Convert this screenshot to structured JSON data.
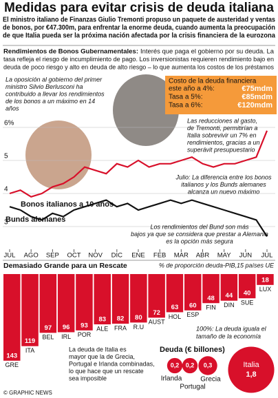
{
  "title": "Medidas para evitar crisis de deuda italiana",
  "intro": [
    "El ministro italiano de Finanzas Giulio Tremonti propuso un paquete de austeridad y ventas",
    "de bonos, por €47.300m, para enfrentar la enorme deuda, cuando aumenta la preocupación",
    "de que Italia pueda ser la próxima nación afectada por la crisis financiera de la eurozona"
  ],
  "section_label": "Rendimientos de Bonos Gubernamentales:",
  "section_text": [
    "Interés que paga el gobierno por su deuda. La",
    "tasa refleja el riesgo de incumplimiento de pago. Los inversionistas requieren rendimiento bajo en",
    "deuda de poco riesgo y alto en deuda de alto riesgo – lo que aumenta los costos de los préstamos"
  ],
  "cost_box": {
    "heading": [
      "Costo de la deuda financiera",
      "este año a 4%:"
    ],
    "rows": [
      {
        "label": "",
        "value": "€75mdm"
      },
      {
        "label": "Tasa a 5%:",
        "value": "€85mdm"
      },
      {
        "label": "Tasa a 6%:",
        "value": "€120mdm"
      }
    ]
  },
  "chart_data": [
    {
      "type": "line",
      "categories": [
        "JUL",
        null,
        "AGO",
        null,
        "SEP",
        null,
        "OCT",
        null,
        "NOV",
        null,
        "DIC",
        null,
        "ENE",
        null,
        "FEB",
        null,
        "MAR",
        null,
        "ABR",
        null,
        "MAY",
        null,
        "JUN",
        null,
        "JUL"
      ],
      "series": [
        {
          "name": "Bonos italianos a 10 años",
          "color": "#d8102a",
          "values": [
            4.0,
            4.1,
            3.9,
            4.0,
            4.2,
            4.3,
            4.5,
            4.8,
            4.7,
            4.6,
            4.9,
            4.8,
            5.0,
            4.8,
            4.9,
            4.9,
            5.0,
            5.1,
            4.9,
            4.8,
            4.9,
            4.9,
            5.0,
            5.1,
            5.9
          ]
        },
        {
          "name": "Bunds alemanes",
          "color": "#111111",
          "values": [
            3.6,
            3.5,
            3.3,
            3.2,
            3.4,
            3.3,
            3.5,
            3.6,
            3.7,
            3.8,
            3.6,
            3.7,
            3.5,
            3.6,
            3.7,
            3.8,
            3.7,
            3.8,
            3.7,
            3.6,
            3.5,
            3.4,
            3.3,
            3.2,
            2.7
          ]
        }
      ],
      "ylim": [
        2.5,
        6.5
      ],
      "yticks": [
        {
          "value": 6,
          "label": "6%"
        },
        5,
        4,
        3
      ],
      "grid": true,
      "annotations": [
        [
          "La oposición al gobierno del primer",
          "ministro Silvio Berlusconi ha",
          "contribuido a llevar los rendimientos",
          "de los bonos a un máximo en 14",
          "años"
        ],
        [
          "Las reducciones al gasto,",
          "de Tremonti, permitirían a",
          "Italia sobrevivir un 7% en",
          "rendimientos, gracias a un",
          "superávit presupuestario"
        ],
        [
          "Julio: La diferencia entre los bonos",
          "italianos y los Bunds alemanes",
          "alcanza un nuevo máximo"
        ],
        [
          "Los rendimientos del Bund son más",
          "bajos ya que se considera que prestar a Alemania",
          "es la opción más segura"
        ]
      ]
    },
    {
      "type": "bar",
      "title": "Demasiado Grande para un Rescate",
      "subtitle": "% de proporción deuda-PIB,15 países UE",
      "categories": [
        "GRE",
        "ITA",
        "BEL",
        "IRL",
        "POR",
        "ALE",
        "FRA",
        "R.U",
        "AUST",
        "HOL",
        "ESP",
        "FIN",
        "DIN",
        "SUE",
        "LUX"
      ],
      "values": [
        143,
        119,
        97,
        96,
        93,
        83,
        82,
        80,
        72,
        63,
        60,
        48,
        44,
        40,
        18
      ],
      "color": "#d8102a",
      "ylim": [
        0,
        150
      ],
      "annotations": [
        [
          "100%: La deuda iguala el",
          "tamaño de la economía"
        ],
        [
          "La deuda de Italia es",
          "mayor que la de Grecia,",
          "Portugal e Irlanda combinadas,",
          "lo que hace que un rescate",
          "sea imposible"
        ]
      ]
    },
    {
      "type": "bubble",
      "title": "Deuda (€ billones)",
      "categories": [
        "Irlanda",
        "Portugal",
        "Grecia",
        "Italia"
      ],
      "values": [
        0.2,
        0.2,
        0.3,
        1.8
      ],
      "value_labels": [
        "0,2",
        "0,2",
        "0,3",
        "1,8"
      ],
      "color": "#d8102a"
    }
  ],
  "footer": "© GRAPHIC NEWS"
}
